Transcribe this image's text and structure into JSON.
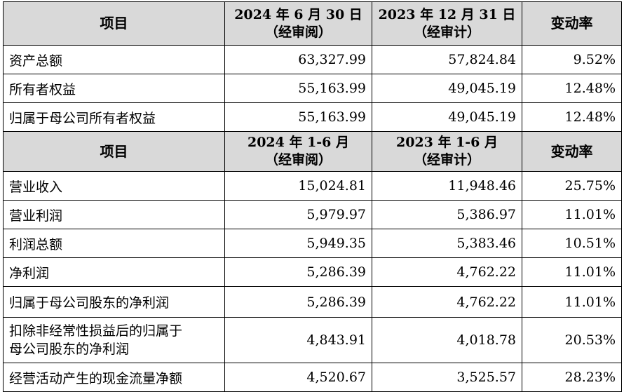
{
  "table": {
    "header1": {
      "col1": "项目",
      "col2_line1": "2024 年 6 月 30 日",
      "col2_line2": "（经审阅）",
      "col3_line1": "2023 年 12 月 31 日",
      "col3_line2": "（经审计）",
      "col4": "变动率"
    },
    "balance_rows": [
      {
        "label": "资产总额",
        "v2024": "63,327.99",
        "v2023": "57,824.84",
        "change": "9.52%"
      },
      {
        "label": "所有者权益",
        "v2024": "55,163.99",
        "v2023": "49,045.19",
        "change": "12.48%"
      },
      {
        "label": "归属于母公司所有者权益",
        "v2024": "55,163.99",
        "v2023": "49,045.19",
        "change": "12.48%"
      }
    ],
    "header2": {
      "col1": "项目",
      "col2_line1": "2024 年 1-6 月",
      "col2_line2": "（经审阅）",
      "col3_line1": "2023 年 1-6 月",
      "col3_line2": "（经审计）",
      "col4": "变动率"
    },
    "income_rows": [
      {
        "label": "营业收入",
        "v2024": "15,024.81",
        "v2023": "11,948.46",
        "change": "25.75%"
      },
      {
        "label": "营业利润",
        "v2024": "5,979.97",
        "v2023": "5,386.97",
        "change": "11.01%"
      },
      {
        "label": "利润总额",
        "v2024": "5,949.35",
        "v2023": "5,383.46",
        "change": "10.51%"
      },
      {
        "label": "净利润",
        "v2024": "5,286.39",
        "v2023": "4,762.22",
        "change": "11.01%"
      },
      {
        "label": "归属于母公司股东的净利润",
        "v2024": "5,286.39",
        "v2023": "4,762.22",
        "change": "11.01%"
      }
    ],
    "deducted_row": {
      "label_line1": "扣除非经常性损益后的归属于",
      "label_line2": "母公司股东的净利润",
      "v2024": "4,843.91",
      "v2023": "4,018.78",
      "change": "20.53%"
    },
    "cashflow_row": {
      "label": "经营活动产生的现金流量净额",
      "v2024": "4,520.67",
      "v2023": "3,525.57",
      "change": "28.23%"
    }
  }
}
